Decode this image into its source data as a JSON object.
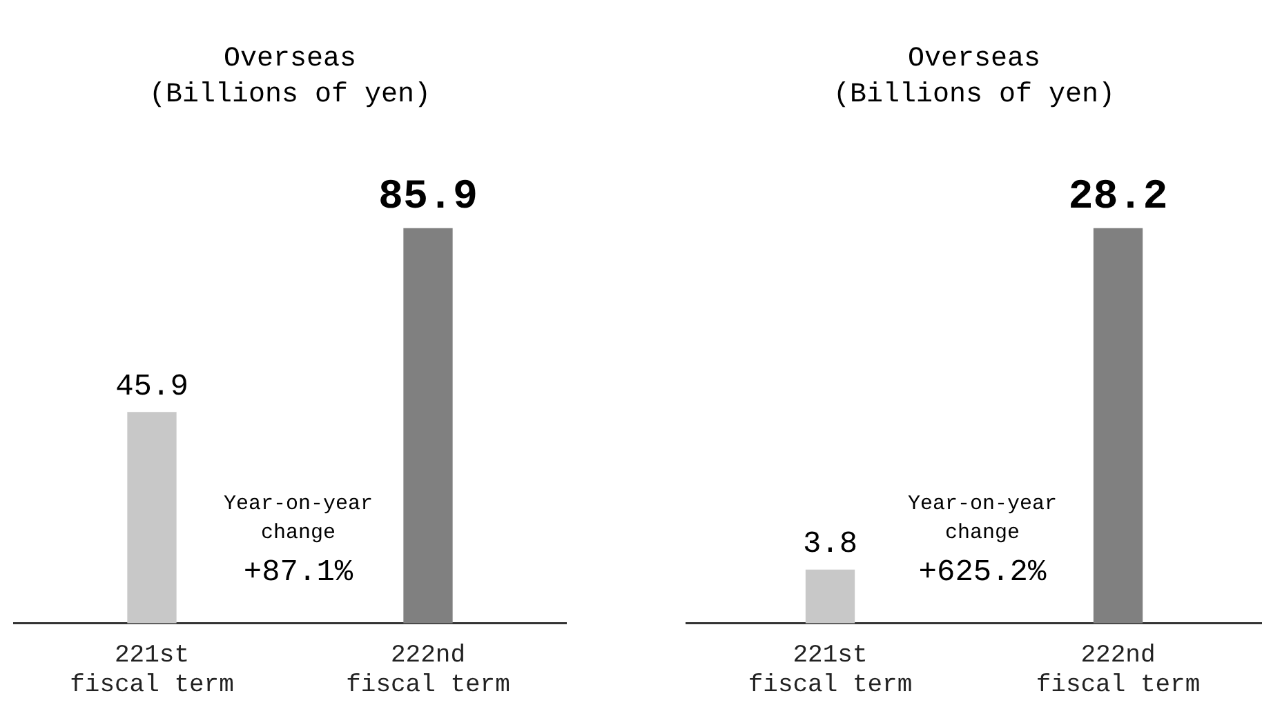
{
  "chart_data": [
    {
      "type": "bar",
      "title": "Overseas",
      "subtitle": "(Billions of yen)",
      "categories": [
        "221st fiscal term",
        "222nd fiscal term"
      ],
      "values": [
        45.9,
        85.9
      ],
      "colors": [
        "#c8c8c8",
        "#808080"
      ],
      "data_labels": true,
      "grid": false,
      "legend": false,
      "tick_labels": "x",
      "annotations": [
        "Year-on-year change",
        "+87.1%"
      ]
    },
    {
      "type": "bar",
      "title": "Overseas",
      "subtitle": "(Billions of yen)",
      "categories": [
        "221st fiscal term",
        "222nd fiscal term"
      ],
      "values": [
        3.8,
        28.2
      ],
      "colors": [
        "#c8c8c8",
        "#808080"
      ],
      "data_labels": true,
      "grid": false,
      "legend": false,
      "tick_labels": "x",
      "annotations": [
        "Year-on-year change",
        "+625.2%"
      ]
    }
  ]
}
